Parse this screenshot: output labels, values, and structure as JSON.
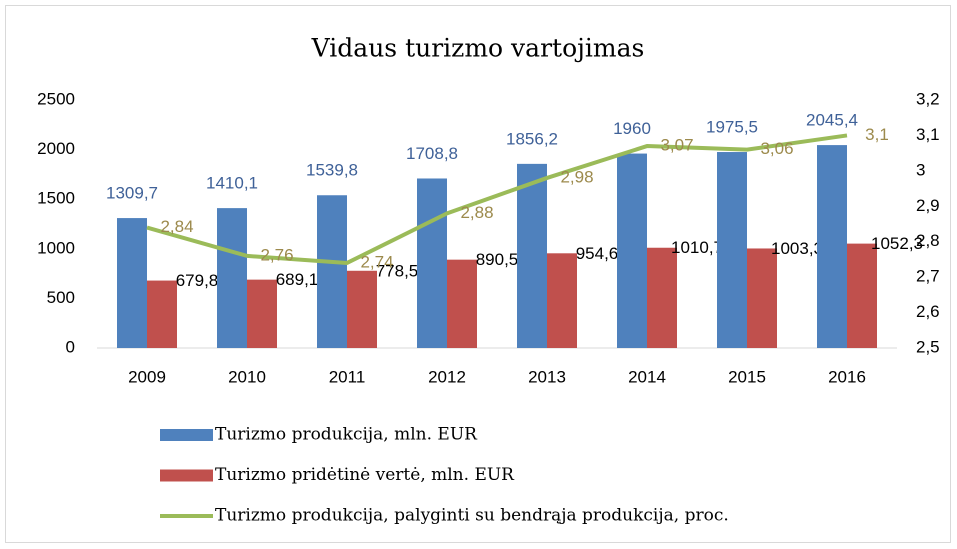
{
  "chart_data": {
    "type": "bar",
    "title": "Vidaus turizmo vartojimas",
    "categories": [
      "2009",
      "2010",
      "2011",
      "2012",
      "2013",
      "2014",
      "2015",
      "2016"
    ],
    "series": [
      {
        "name": "Turizmo produkcija, mln. EUR",
        "color": "#4f81bd",
        "type": "bar",
        "values": [
          1309.7,
          1410.1,
          1539.8,
          1708.8,
          1856.2,
          1960,
          1975.5,
          2045.4
        ],
        "value_labels": [
          "1309,7",
          "1410,1",
          "1539,8",
          "1708,8",
          "1856,2",
          "1960",
          "1975,5",
          "2045,4"
        ]
      },
      {
        "name": "Turizmo pridėtinė vertė, mln. EUR",
        "color": "#c0504d",
        "type": "bar",
        "values": [
          679.8,
          689.1,
          778.5,
          890.5,
          954.6,
          1010.7,
          1003.3,
          1052.3
        ],
        "value_labels": [
          "679,8",
          "689,1",
          "778,5",
          "890,5",
          "954,6",
          "1010,7",
          "1003,3",
          "1052,3"
        ]
      },
      {
        "name": "Turizmo produkcija, palyginti su bendrąja produkcija, proc.",
        "color": "#9bbb59",
        "type": "line",
        "axis": "y2",
        "values": [
          2.84,
          2.76,
          2.74,
          2.88,
          2.98,
          3.07,
          3.06,
          3.1
        ],
        "value_labels": [
          "2,84",
          "2,76",
          "2,74",
          "2,88",
          "2,98",
          "3,07",
          "3,06",
          "3,1"
        ]
      }
    ],
    "ylim": [
      0,
      2500
    ],
    "yticks": [
      0,
      500,
      1000,
      1500,
      2000,
      2500
    ],
    "y2lim": [
      2.5,
      3.2
    ],
    "y2ticks": [
      {
        "value": 2.5,
        "label": "2,5"
      },
      {
        "value": 2.6,
        "label": "2,6"
      },
      {
        "value": 2.7,
        "label": "2,7"
      },
      {
        "value": 2.8,
        "label": "2,8"
      },
      {
        "value": 2.9,
        "label": "2,9"
      },
      {
        "value": 3,
        "label": "3"
      },
      {
        "value": 3.1,
        "label": "3,1"
      },
      {
        "value": 3.2,
        "label": "3,2"
      }
    ],
    "grid": false,
    "legend": "bottom"
  }
}
